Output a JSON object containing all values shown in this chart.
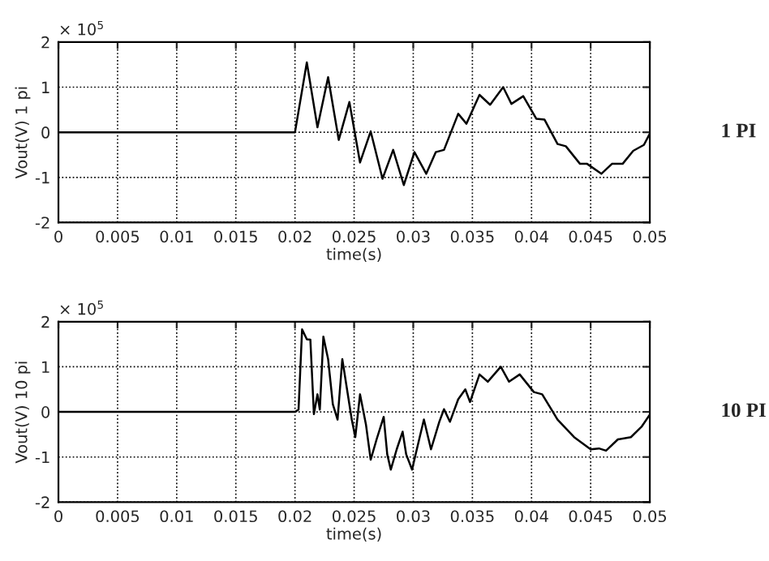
{
  "chart_data": [
    {
      "type": "line",
      "xlabel": "time(s)",
      "ylabel": "Vout(V) 1 pi",
      "annotations": [
        "× 10$^{5}$",
        "1 PI"
      ],
      "x": [
        0,
        0.02,
        0.021,
        0.0219,
        0.0228,
        0.0237,
        0.0246,
        0.0255,
        0.0264,
        0.0274,
        0.0283,
        0.0292,
        0.0301,
        0.0311,
        0.0319,
        0.0326,
        0.0338,
        0.0345,
        0.0356,
        0.0365,
        0.0376,
        0.0383,
        0.0393,
        0.0404,
        0.0411,
        0.0422,
        0.0429,
        0.0441,
        0.0447,
        0.0459,
        0.0468,
        0.0477,
        0.0486,
        0.0495,
        0.05
      ],
      "series": [
        {
          "color": "#000000",
          "values": [
            0,
            0,
            1.55,
            0.11,
            1.22,
            -0.17,
            0.67,
            -0.67,
            0.02,
            -1.03,
            -0.39,
            -1.17,
            -0.44,
            -0.92,
            -0.44,
            -0.39,
            0.41,
            0.19,
            0.83,
            0.61,
            1.0,
            0.63,
            0.8,
            0.3,
            0.28,
            -0.26,
            -0.31,
            -0.7,
            -0.7,
            -0.92,
            -0.7,
            -0.7,
            -0.41,
            -0.28,
            -0.03
          ]
        }
      ],
      "xlim": [
        0,
        0.05
      ],
      "ylim": [
        -2,
        2
      ],
      "xticks": [
        0,
        0.005,
        0.01,
        0.015,
        0.02,
        0.025,
        0.03,
        0.035,
        0.04,
        0.045,
        0.05
      ],
      "yticks": [
        -2,
        -1,
        0,
        1,
        2
      ],
      "grid": true,
      "line_style": "solid"
    },
    {
      "type": "line",
      "xlabel": "time(s)",
      "ylabel": "Vout(V) 10 pi",
      "annotations": [
        "× 10$^{5}$",
        "10 PI"
      ],
      "x": [
        0,
        0.02,
        0.0203,
        0.0206,
        0.021,
        0.0213,
        0.0216,
        0.0219,
        0.0221,
        0.0224,
        0.0228,
        0.0232,
        0.0236,
        0.024,
        0.0244,
        0.0248,
        0.0251,
        0.0255,
        0.026,
        0.0264,
        0.0269,
        0.0275,
        0.0278,
        0.0281,
        0.0286,
        0.0291,
        0.0294,
        0.0299,
        0.0303,
        0.0309,
        0.0315,
        0.0322,
        0.0326,
        0.0331,
        0.0338,
        0.0344,
        0.0348,
        0.0356,
        0.0363,
        0.0374,
        0.0381,
        0.039,
        0.0402,
        0.0409,
        0.0422,
        0.0436,
        0.045,
        0.0457,
        0.0463,
        0.0473,
        0.0484,
        0.0493,
        0.05
      ],
      "series": [
        {
          "color": "#000000",
          "values": [
            0,
            0,
            0.05,
            1.83,
            1.61,
            1.6,
            -0.05,
            0.39,
            0.05,
            1.67,
            1.17,
            0.17,
            -0.17,
            1.17,
            0.5,
            -0.17,
            -0.56,
            0.39,
            -0.28,
            -1.06,
            -0.61,
            -0.11,
            -0.94,
            -1.28,
            -0.83,
            -0.44,
            -0.94,
            -1.28,
            -0.83,
            -0.17,
            -0.83,
            -0.22,
            0.06,
            -0.22,
            0.28,
            0.5,
            0.22,
            0.83,
            0.67,
            1.0,
            0.67,
            0.83,
            0.44,
            0.39,
            -0.17,
            -0.56,
            -0.83,
            -0.81,
            -0.86,
            -0.61,
            -0.56,
            -0.33,
            -0.06
          ]
        }
      ],
      "xlim": [
        0,
        0.05
      ],
      "ylim": [
        -2,
        2
      ],
      "xticks": [
        0,
        0.005,
        0.01,
        0.015,
        0.02,
        0.025,
        0.03,
        0.035,
        0.04,
        0.045,
        0.05
      ],
      "yticks": [
        -2,
        -1,
        0,
        1,
        2
      ],
      "grid": true,
      "line_style": "solid"
    }
  ]
}
